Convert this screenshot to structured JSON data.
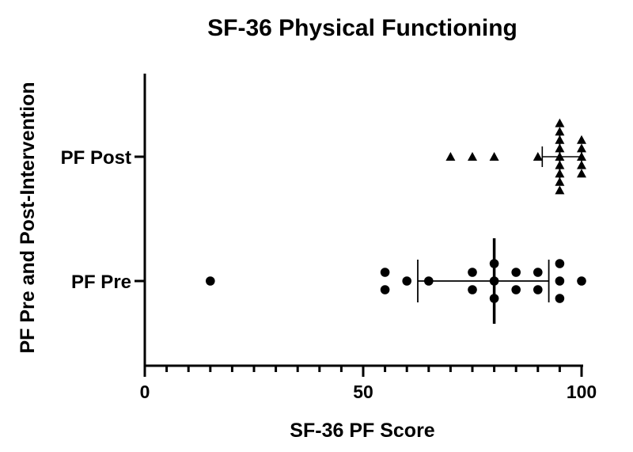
{
  "chart_data": {
    "type": "scatter",
    "title": "SF-36 Physical Functioning",
    "xlabel": "SF-36 PF Score",
    "ylabel": "PF Pre and Post-Intervention",
    "xlim": [
      0,
      100
    ],
    "x_ticks": [
      "0",
      "50",
      "100"
    ],
    "x_minor_step": 5,
    "categories": [
      "PF Pre",
      "PF Post"
    ],
    "grid": false,
    "legend": "none",
    "series": [
      {
        "category": "PF Pre",
        "marker": "circle",
        "values": [
          15,
          55,
          55,
          60,
          65,
          75,
          75,
          80,
          80,
          80,
          85,
          85,
          90,
          90,
          95,
          95,
          95,
          100
        ],
        "median": 80,
        "range": [
          62.5,
          92.5
        ]
      },
      {
        "category": "PF Post",
        "marker": "triangle",
        "values": [
          70,
          75,
          80,
          90,
          95,
          95,
          95,
          95,
          95,
          95,
          95,
          95,
          95,
          100,
          100,
          100,
          100,
          100
        ],
        "median": 95,
        "range": [
          91,
          100
        ]
      }
    ]
  }
}
